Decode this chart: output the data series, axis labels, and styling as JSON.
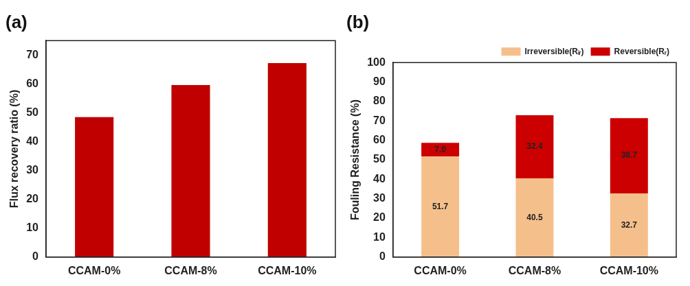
{
  "chart_data": [
    {
      "type": "bar",
      "title": "(a)",
      "ylabel": "Flux recovery ratio (%)",
      "categories": [
        "CCAM-0%",
        "CCAM-8%",
        "CCAM-10%"
      ],
      "values": [
        48.5,
        59.6,
        67.2
      ],
      "color": "#c00000",
      "ylim": [
        0,
        75
      ],
      "yticks": [
        0,
        10,
        20,
        30,
        40,
        50,
        60,
        70
      ],
      "grid": false,
      "legend": false
    },
    {
      "type": "bar",
      "title": "(b)",
      "ylabel": "Fouling Resistance (%)",
      "categories": [
        "CCAM-0%",
        "CCAM-8%",
        "CCAM-10%"
      ],
      "stacked": true,
      "series": [
        {
          "name": "Irreversible(Rᵢᵣ)",
          "color": "#f5bf8c",
          "values": [
            51.7,
            40.5,
            32.7
          ],
          "value_labels": [
            "51.7",
            "40.5",
            "32.7"
          ]
        },
        {
          "name": "Reversible(Rᵣ)",
          "color": "#cc0000",
          "values": [
            7.0,
            32.4,
            38.7
          ],
          "value_labels": [
            "7.0",
            "32.4",
            "38.7"
          ]
        }
      ],
      "ylim": [
        0,
        100
      ],
      "yticks": [
        0,
        10,
        20,
        30,
        40,
        50,
        60,
        70,
        80,
        90,
        100
      ],
      "grid": false,
      "legend": "top right"
    }
  ]
}
